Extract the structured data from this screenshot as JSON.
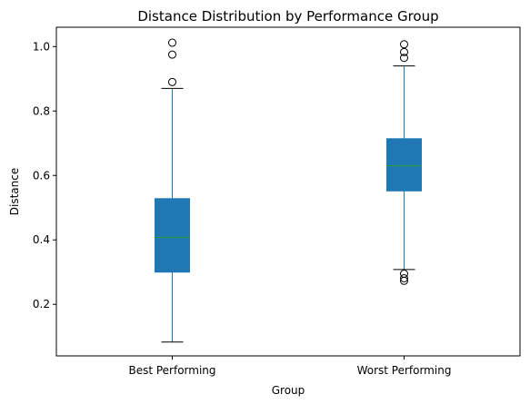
{
  "chart_data": {
    "type": "box",
    "title": "Distance Distribution by Performance Group",
    "xlabel": "Group",
    "ylabel": "Distance",
    "ylim": [
      0.04,
      1.06
    ],
    "yticks": [
      0.2,
      0.4,
      0.6,
      0.8,
      1.0
    ],
    "ytick_labels": [
      "0.2",
      "0.4",
      "0.6",
      "0.8",
      "1.0"
    ],
    "grid": false,
    "categories": [
      "Best Performing",
      "Worst Performing"
    ],
    "boxes": [
      {
        "name": "Best Performing",
        "whisker_low": 0.083,
        "q1": 0.3,
        "median": 0.408,
        "q3": 0.528,
        "whisker_high": 0.87,
        "outliers": [
          0.89,
          0.975,
          1.012
        ]
      },
      {
        "name": "Worst Performing",
        "whisker_low": 0.308,
        "q1": 0.552,
        "median": 0.63,
        "q3": 0.714,
        "whisker_high": 0.94,
        "outliers": [
          0.273,
          0.281,
          0.295,
          0.965,
          0.983,
          1.007
        ]
      }
    ],
    "colors": {
      "box_fill": "#1f77b4",
      "median": "#2ca02c",
      "whisker": "#1f77b4",
      "cap": "#000000",
      "outlier": "#000000"
    }
  }
}
